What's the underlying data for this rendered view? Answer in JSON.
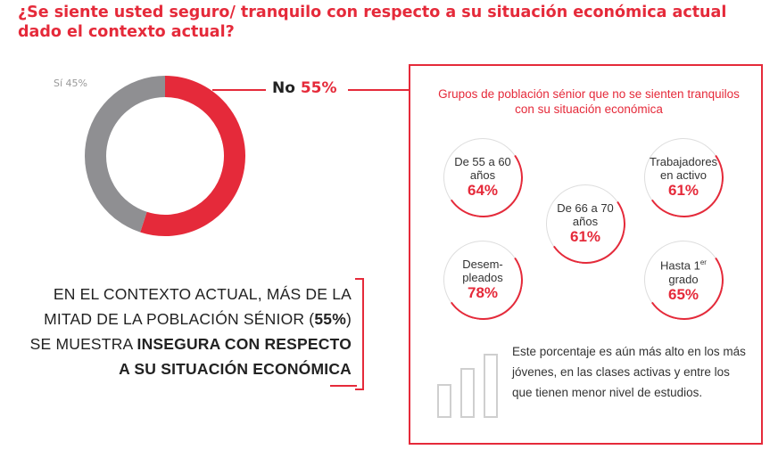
{
  "title": "¿Se siente usted seguro/ tranquilo con respecto a su situación económica actual dado el contexto actual?",
  "chart_data": {
    "type": "pie",
    "style": "donut",
    "categories": [
      "Sí",
      "No"
    ],
    "values": [
      45,
      55
    ],
    "value_labels": [
      "45%",
      "55%"
    ],
    "colors": [
      "#8f8f92",
      "#e52a3a"
    ]
  },
  "labels": {
    "si_name": "Sí",
    "si_value": "45%",
    "no_name": "No",
    "no_value": "55%"
  },
  "summary": {
    "line1": "EN EL CONTEXTO ACTUAL, MÁS DE LA",
    "line2_pre": "MITAD DE LA POBLACIÓN SÉNIOR (",
    "line2_bold": "55%",
    "line2_post": ")",
    "line3_pre": "SE MUESTRA ",
    "line3_bold": "INSEGURA CON RESPECTO",
    "line4_bold": "A SU SITUACIÓN ECONÓMICA"
  },
  "panel": {
    "title": "Grupos de población sénior que no se sienten tranquilos con su situación económica",
    "groups": [
      {
        "label": "De 55 a 60 años",
        "value": "64%"
      },
      {
        "label": "Trabajadores en activo",
        "value": "61%"
      },
      {
        "label": "De 66 a 70 años",
        "value": "61%"
      },
      {
        "label": "Desem-pleados",
        "value": "78%"
      },
      {
        "label_main": "Hasta 1",
        "label_sup": "er",
        "label_tail": " grado",
        "value": "65%"
      }
    ],
    "footnote": "Este porcentaje es aún más alto en los más jóvenes, en las clases activas y entre los que tienen menor nivel de estudios.",
    "icon": "bar-chart-icon"
  }
}
